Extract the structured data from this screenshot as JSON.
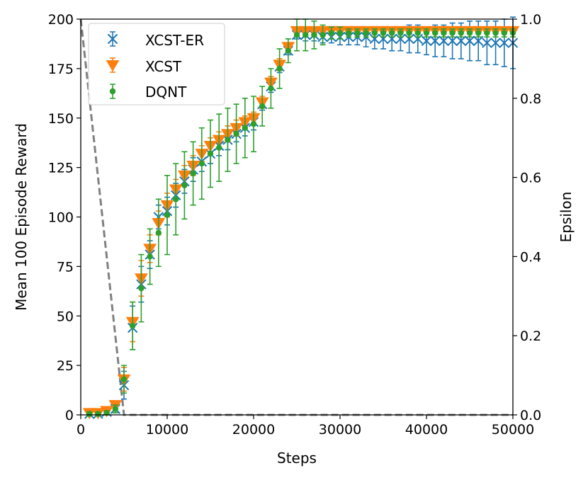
{
  "colors": {
    "xcst_er": "#1f77b4",
    "xcst": "#ff7f0e",
    "dqnt": "#2ca02c",
    "epsilon": "#808080"
  },
  "chart_data": {
    "type": "line",
    "xlabel": "Steps",
    "ylabel": "Mean 100 Episode Reward",
    "y2label": "Epsilon",
    "xlim": [
      0,
      50000
    ],
    "ylim": [
      0,
      200
    ],
    "y2lim": [
      0.0,
      1.0
    ],
    "xticks": [
      0,
      10000,
      20000,
      30000,
      40000,
      50000
    ],
    "xtick_labels": [
      "0",
      "10000",
      "20000",
      "30000",
      "40000",
      "50000"
    ],
    "yticks": [
      0,
      25,
      50,
      75,
      100,
      125,
      150,
      175,
      200
    ],
    "ytick_labels": [
      "0",
      "25",
      "50",
      "75",
      "100",
      "125",
      "150",
      "175",
      "200"
    ],
    "y2ticks": [
      0.0,
      0.2,
      0.4,
      0.6,
      0.8,
      1.0
    ],
    "y2tick_labels": [
      "0.0",
      "0.2",
      "0.4",
      "0.6",
      "0.8",
      "1.0"
    ],
    "legend_position": "top-left",
    "steps": [
      1000,
      2000,
      3000,
      4000,
      5000,
      6000,
      7000,
      8000,
      9000,
      10000,
      11000,
      12000,
      13000,
      14000,
      15000,
      16000,
      17000,
      18000,
      19000,
      20000,
      21000,
      22000,
      23000,
      24000,
      25000,
      26000,
      27000,
      28000,
      29000,
      30000,
      31000,
      32000,
      33000,
      34000,
      35000,
      36000,
      37000,
      38000,
      39000,
      40000,
      41000,
      42000,
      43000,
      44000,
      45000,
      46000,
      47000,
      48000,
      49000,
      50000
    ],
    "series": [
      {
        "name": "XCST-ER",
        "marker": "x",
        "values": [
          0.5,
          0.5,
          1.5,
          3,
          15,
          44,
          66,
          81,
          100,
          103,
          111,
          118,
          124,
          128,
          132,
          136,
          139,
          142,
          145,
          148,
          157,
          166,
          176,
          184,
          192,
          192,
          192,
          191,
          191,
          191,
          191,
          191,
          191,
          190,
          190,
          190,
          190,
          190,
          190,
          189,
          189,
          189,
          189,
          189,
          189,
          189,
          188,
          188,
          188,
          188
        ],
        "errors": [
          1,
          1,
          1,
          2,
          7,
          11,
          9,
          7,
          6,
          7,
          6,
          6,
          6,
          5,
          5,
          5,
          5,
          4,
          4,
          4,
          3,
          3,
          3,
          2,
          2,
          3,
          3,
          3,
          3,
          4,
          4,
          4,
          5,
          5,
          5,
          6,
          6,
          7,
          7,
          7,
          8,
          8,
          9,
          9,
          10,
          10,
          11,
          11,
          12,
          13
        ]
      },
      {
        "name": "XCST",
        "marker": "triangle-down",
        "values": [
          1,
          1,
          2,
          5,
          18,
          47,
          69,
          84,
          97,
          106,
          114,
          121,
          126,
          132,
          136,
          139,
          142,
          145,
          148,
          150,
          158,
          168,
          177,
          186,
          194,
          194,
          194,
          194,
          194,
          194,
          194,
          194,
          194,
          194,
          194,
          194,
          194,
          194,
          194,
          194,
          194,
          194,
          194,
          194,
          194,
          194,
          194,
          194,
          194,
          194
        ],
        "errors": [
          1,
          1,
          1,
          2,
          6,
          10,
          9,
          7,
          6,
          6,
          5,
          5,
          5,
          4,
          4,
          4,
          4,
          4,
          3,
          3,
          3,
          3,
          3,
          2,
          1,
          1,
          1,
          1,
          1,
          1,
          1,
          1,
          1,
          1,
          1,
          1,
          1,
          1,
          1,
          1,
          1,
          1,
          1,
          1,
          1,
          1,
          1,
          1,
          1,
          1
        ]
      },
      {
        "name": "DQNT",
        "marker": "circle",
        "values": [
          0.5,
          0.5,
          1,
          3,
          18,
          45,
          64,
          80,
          92,
          101,
          109,
          116,
          122,
          127,
          132,
          135,
          139,
          142,
          145,
          147,
          156,
          165,
          175,
          184,
          192,
          192,
          192,
          192,
          193,
          193,
          193,
          193,
          193,
          193,
          193,
          193,
          193,
          193,
          193,
          193,
          193,
          193,
          193,
          193,
          193,
          193,
          193,
          193,
          193,
          193
        ],
        "errors": [
          1,
          1,
          1,
          2,
          7,
          12,
          17,
          14,
          17,
          20,
          18,
          17,
          16,
          18,
          17,
          17,
          16,
          15,
          15,
          14,
          10,
          10,
          10,
          6,
          8,
          8,
          7,
          5,
          3,
          3,
          2,
          2,
          2,
          2,
          2,
          2,
          2,
          2,
          2,
          2,
          2,
          2,
          2,
          2,
          2,
          2,
          2,
          2,
          2,
          2
        ]
      }
    ],
    "epsilon": {
      "name": "Epsilon",
      "style": "dashed",
      "x": [
        0,
        5000,
        50000
      ],
      "values": [
        1.0,
        0.0,
        0.0
      ]
    }
  }
}
